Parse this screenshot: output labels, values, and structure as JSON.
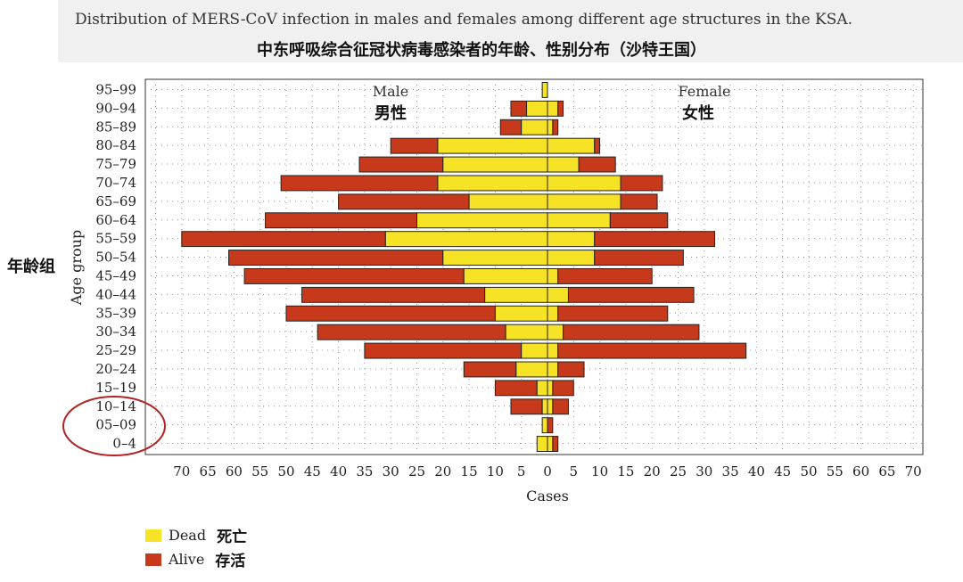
{
  "header": {
    "title_en": "Distribution of MERS-CoV infection in males and females among different age structures in the KSA.",
    "title_cn": "中东呼吸综合征冠状病毒感染者的年龄、性别分布（沙特王国）"
  },
  "annotations": {
    "male_en": "Male",
    "male_cn": "男性",
    "female_en": "Female",
    "female_cn": "女性",
    "age_group_cn": "年龄组"
  },
  "legend": {
    "dead_en": "Dead",
    "dead_cn": "死亡",
    "alive_en": "Alive",
    "alive_cn": "存活"
  },
  "colors": {
    "dead": "#f7e325",
    "alive": "#c63a1b",
    "highlight_circle": "#b22222"
  },
  "chart_data": {
    "type": "bar",
    "orientation": "horizontal-population-pyramid",
    "xlabel": "Cases",
    "ylabel": "Age group",
    "xlim": [
      -70,
      70
    ],
    "x_ticks": [
      70,
      65,
      60,
      55,
      50,
      45,
      40,
      35,
      30,
      25,
      20,
      15,
      10,
      5,
      0,
      5,
      10,
      15,
      20,
      25,
      30,
      35,
      40,
      45,
      50,
      55,
      60,
      65,
      70
    ],
    "grid": true,
    "legend_position": "bottom-left",
    "categories": [
      "95–99",
      "90–94",
      "85–89",
      "80–84",
      "75–79",
      "70–74",
      "65–69",
      "60–64",
      "55–59",
      "50–54",
      "45–49",
      "40–44",
      "35–39",
      "30–34",
      "25–29",
      "20–24",
      "15–19",
      "10–14",
      "05–09",
      "0–4"
    ],
    "series": [
      {
        "name": "Male Dead",
        "values": [
          1,
          4,
          5,
          21,
          20,
          21,
          15,
          25,
          31,
          20,
          16,
          12,
          10,
          8,
          5,
          6,
          2,
          1,
          1,
          2
        ]
      },
      {
        "name": "Male Alive",
        "values": [
          0,
          3,
          4,
          9,
          16,
          30,
          25,
          29,
          39,
          41,
          42,
          35,
          40,
          36,
          30,
          10,
          8,
          6,
          0,
          0
        ]
      },
      {
        "name": "Female Dead",
        "values": [
          0,
          2,
          1,
          9,
          6,
          14,
          14,
          12,
          9,
          9,
          2,
          4,
          2,
          3,
          2,
          2,
          1,
          1,
          0,
          1
        ]
      },
      {
        "name": "Female Alive",
        "values": [
          0,
          1,
          1,
          1,
          7,
          8,
          7,
          11,
          23,
          17,
          18,
          24,
          21,
          26,
          36,
          5,
          4,
          3,
          1,
          1
        ]
      }
    ],
    "highlighted_categories": [
      "10–14",
      "05–09",
      "0–4"
    ]
  }
}
